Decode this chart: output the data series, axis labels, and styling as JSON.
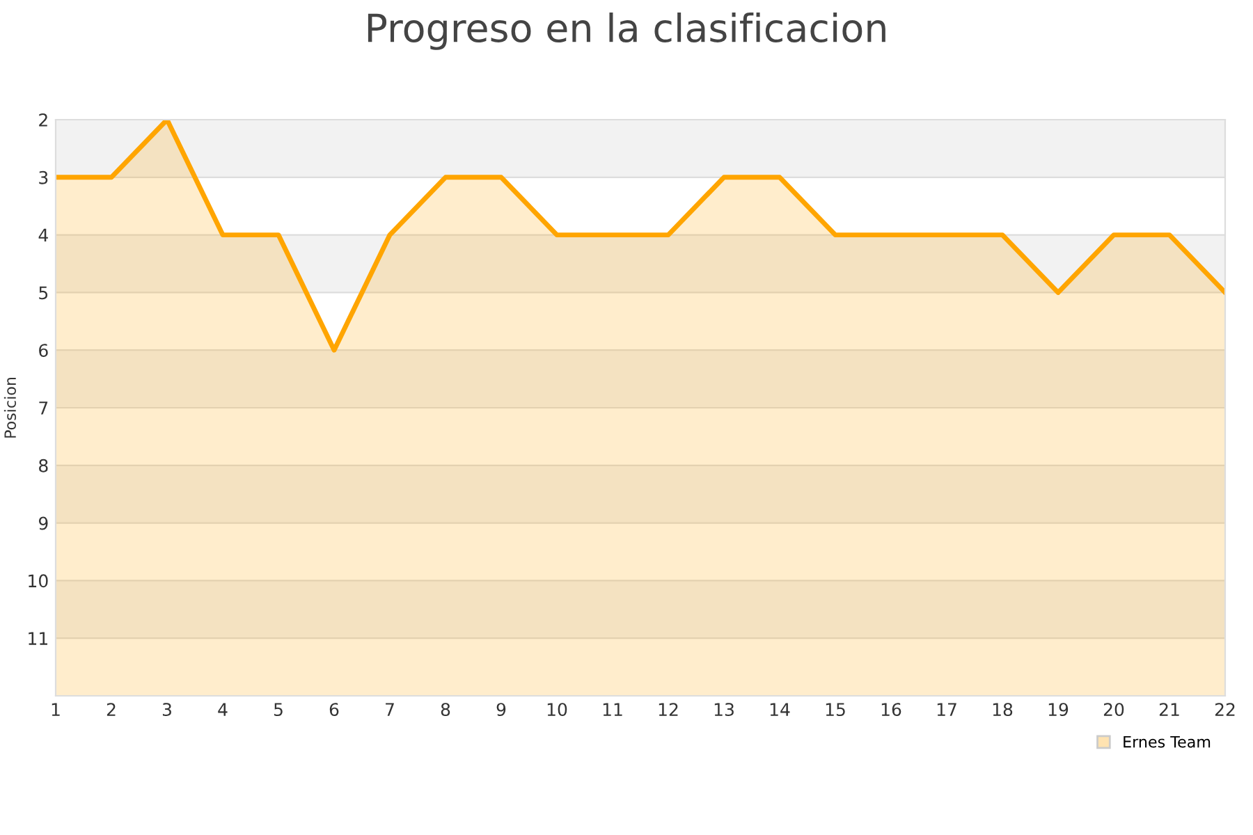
{
  "chart_data": {
    "type": "line",
    "title": "Progreso en la clasificacion",
    "ylabel": "Posicion",
    "x": [
      1,
      2,
      3,
      4,
      5,
      6,
      7,
      8,
      9,
      10,
      11,
      12,
      13,
      14,
      15,
      16,
      17,
      18,
      19,
      20,
      21,
      22
    ],
    "series": [
      {
        "name": "Ernes Team",
        "color": "#ffa500",
        "values": [
          3,
          3,
          2,
          4,
          4,
          6,
          4,
          3,
          3,
          4,
          4,
          4,
          3,
          3,
          4,
          4,
          4,
          4,
          5,
          4,
          4,
          5
        ],
        "lower": [
          12,
          12,
          12,
          12,
          12,
          12,
          12,
          12,
          12,
          12,
          12,
          12,
          12,
          12,
          12,
          12,
          12,
          12,
          12,
          12,
          12,
          12
        ],
        "upper": [
          3,
          3,
          2,
          4,
          4,
          6,
          4,
          3,
          3,
          4,
          4,
          4,
          3,
          3,
          4,
          4,
          4,
          4,
          5,
          4,
          4,
          5
        ]
      }
    ],
    "xlim": [
      1,
      22
    ],
    "xticks": [
      1,
      2,
      3,
      4,
      5,
      6,
      7,
      8,
      9,
      10,
      11,
      12,
      13,
      14,
      15,
      16,
      17,
      18,
      19,
      20,
      21,
      22
    ],
    "ylim": [
      12,
      2
    ],
    "yticks": [
      2,
      3,
      4,
      5,
      6,
      7,
      8,
      9,
      10,
      11,
      {
        "value": 12,
        "label": null
      }
    ],
    "grid": "y",
    "legend": "bottom right",
    "marker": "none",
    "line_style": "solid"
  }
}
